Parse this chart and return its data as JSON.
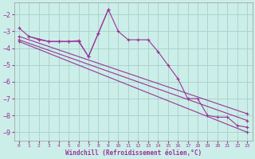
{
  "xlabel": "Windchill (Refroidissement éolien,°C)",
  "background_color": "#cceee8",
  "grid_color": "#aad4ce",
  "line_color": "#993399",
  "xlim": [
    -0.5,
    23.5
  ],
  "ylim": [
    -9.5,
    -1.3
  ],
  "yticks": [
    -9,
    -8,
    -7,
    -6,
    -5,
    -4,
    -3,
    -2
  ],
  "xticks": [
    0,
    1,
    2,
    3,
    4,
    5,
    6,
    7,
    8,
    9,
    10,
    11,
    12,
    13,
    14,
    15,
    16,
    17,
    18,
    19,
    20,
    21,
    22,
    23
  ],
  "series": [
    {
      "x": [
        0,
        1,
        2,
        3,
        4,
        5,
        6,
        7,
        8,
        9,
        10,
        11,
        12,
        13,
        14,
        15,
        16,
        17,
        18,
        19,
        20,
        21,
        22,
        23
      ],
      "y": [
        -2.8,
        -3.3,
        -3.5,
        -3.6,
        -3.6,
        -3.6,
        -3.6,
        -4.5,
        -3.1,
        -1.7,
        -3.0,
        -3.5,
        -3.5,
        -3.5,
        -4.2,
        -5.0,
        -5.8,
        -7.0,
        -7.0,
        -8.0,
        -8.1,
        -8.1,
        -8.6,
        -8.7
      ]
    },
    {
      "x": [
        0,
        23
      ],
      "y": [
        -3.3,
        -7.9
      ]
    },
    {
      "x": [
        0,
        23
      ],
      "y": [
        -3.5,
        -8.3
      ]
    },
    {
      "x": [
        0,
        23
      ],
      "y": [
        -3.6,
        -9.0
      ]
    },
    {
      "x": [
        1,
        3,
        4,
        5,
        6,
        7,
        8,
        9
      ],
      "y": [
        -3.3,
        -3.6,
        -3.6,
        -3.6,
        -3.55,
        -4.5,
        -3.1,
        -1.7
      ]
    }
  ]
}
